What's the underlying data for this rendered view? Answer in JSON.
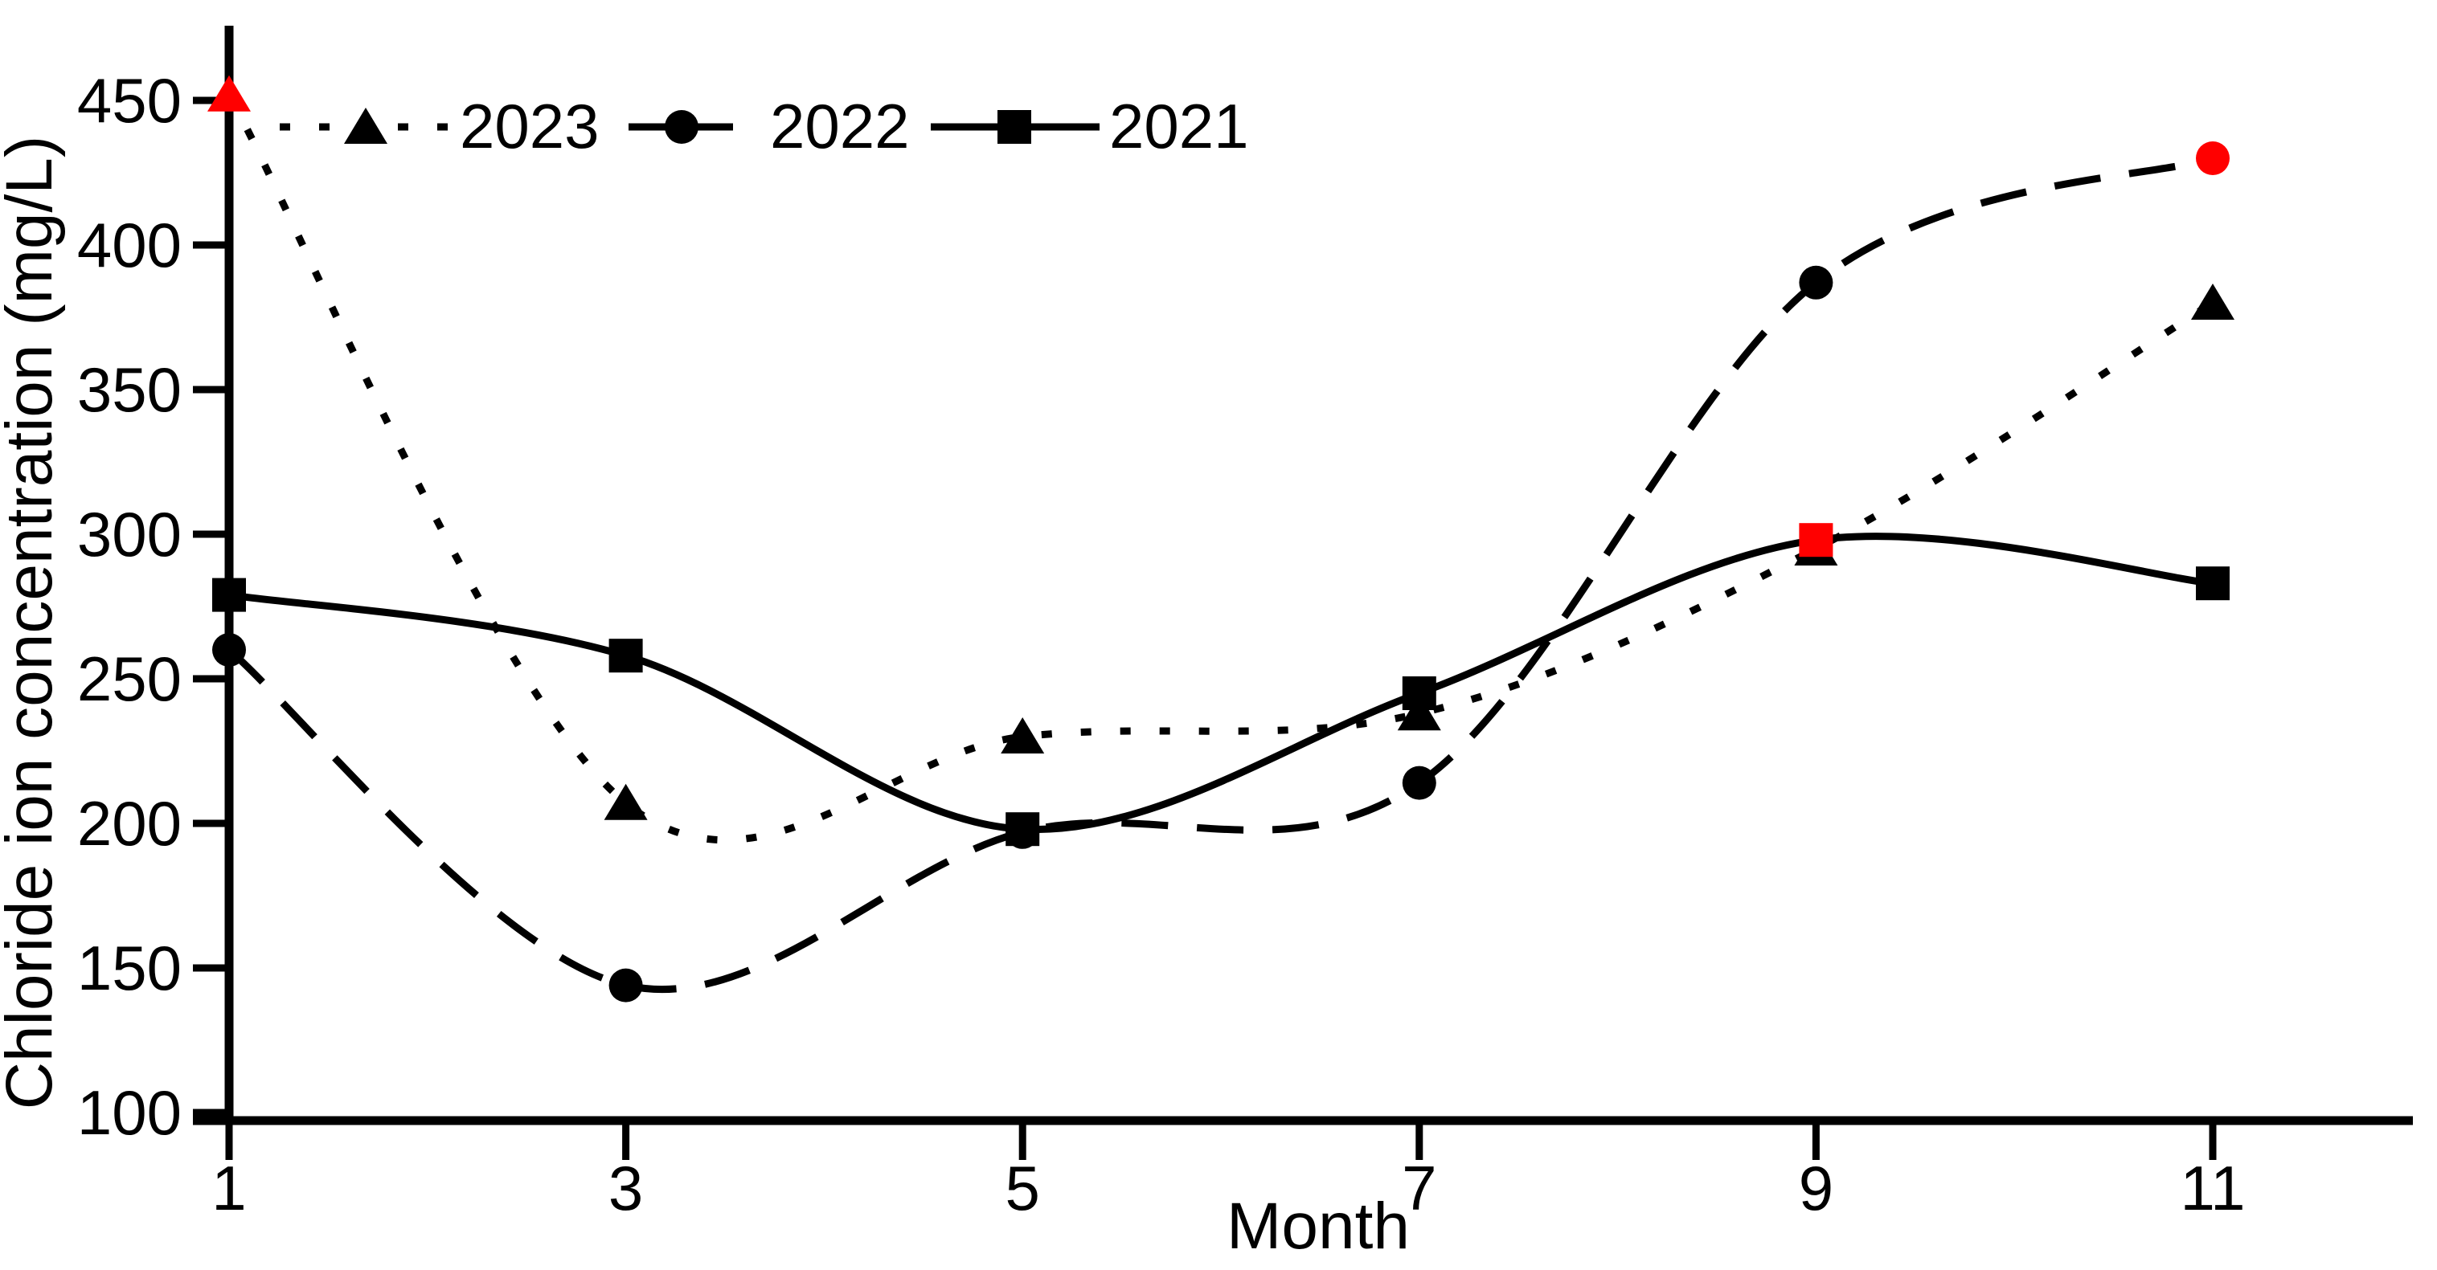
{
  "page": {
    "background": "#ffffff"
  },
  "chart_data": {
    "type": "line",
    "title": "",
    "xlabel": "Month",
    "ylabel": "Chloride ion concentration (mg/L)",
    "grid": false,
    "legend_position": "top-left-inside",
    "axis_color": "#000000",
    "highlight_color": "#ff0000",
    "xlim": [
      1,
      12
    ],
    "ylim": [
      100,
      460
    ],
    "x": [
      1,
      3,
      5,
      7,
      9,
      11
    ],
    "x_tick_labels": [
      "1",
      "3",
      "5",
      "7",
      "9",
      "11"
    ],
    "y_ticks": [
      100,
      150,
      200,
      250,
      300,
      350,
      400,
      450
    ],
    "y_tick_labels": [
      "100",
      "150",
      "200",
      "250",
      "300",
      "350",
      "400",
      "450"
    ],
    "series": [
      {
        "name": "2023",
        "marker": "triangle",
        "line_style": "dotted",
        "color": "#000000",
        "values": [
          452,
          207,
          230,
          238,
          295,
          380
        ],
        "highlight_point_index": 0
      },
      {
        "name": "2022",
        "marker": "circle",
        "line_style": "dashed",
        "color": "#000000",
        "values": [
          260,
          144,
          197,
          214,
          387,
          430
        ],
        "highlight_point_index": 5
      },
      {
        "name": "2021",
        "marker": "square",
        "line_style": "solid",
        "color": "#000000",
        "values": [
          279,
          258,
          198,
          245,
          298,
          283
        ],
        "highlight_point_index": 4
      }
    ]
  }
}
